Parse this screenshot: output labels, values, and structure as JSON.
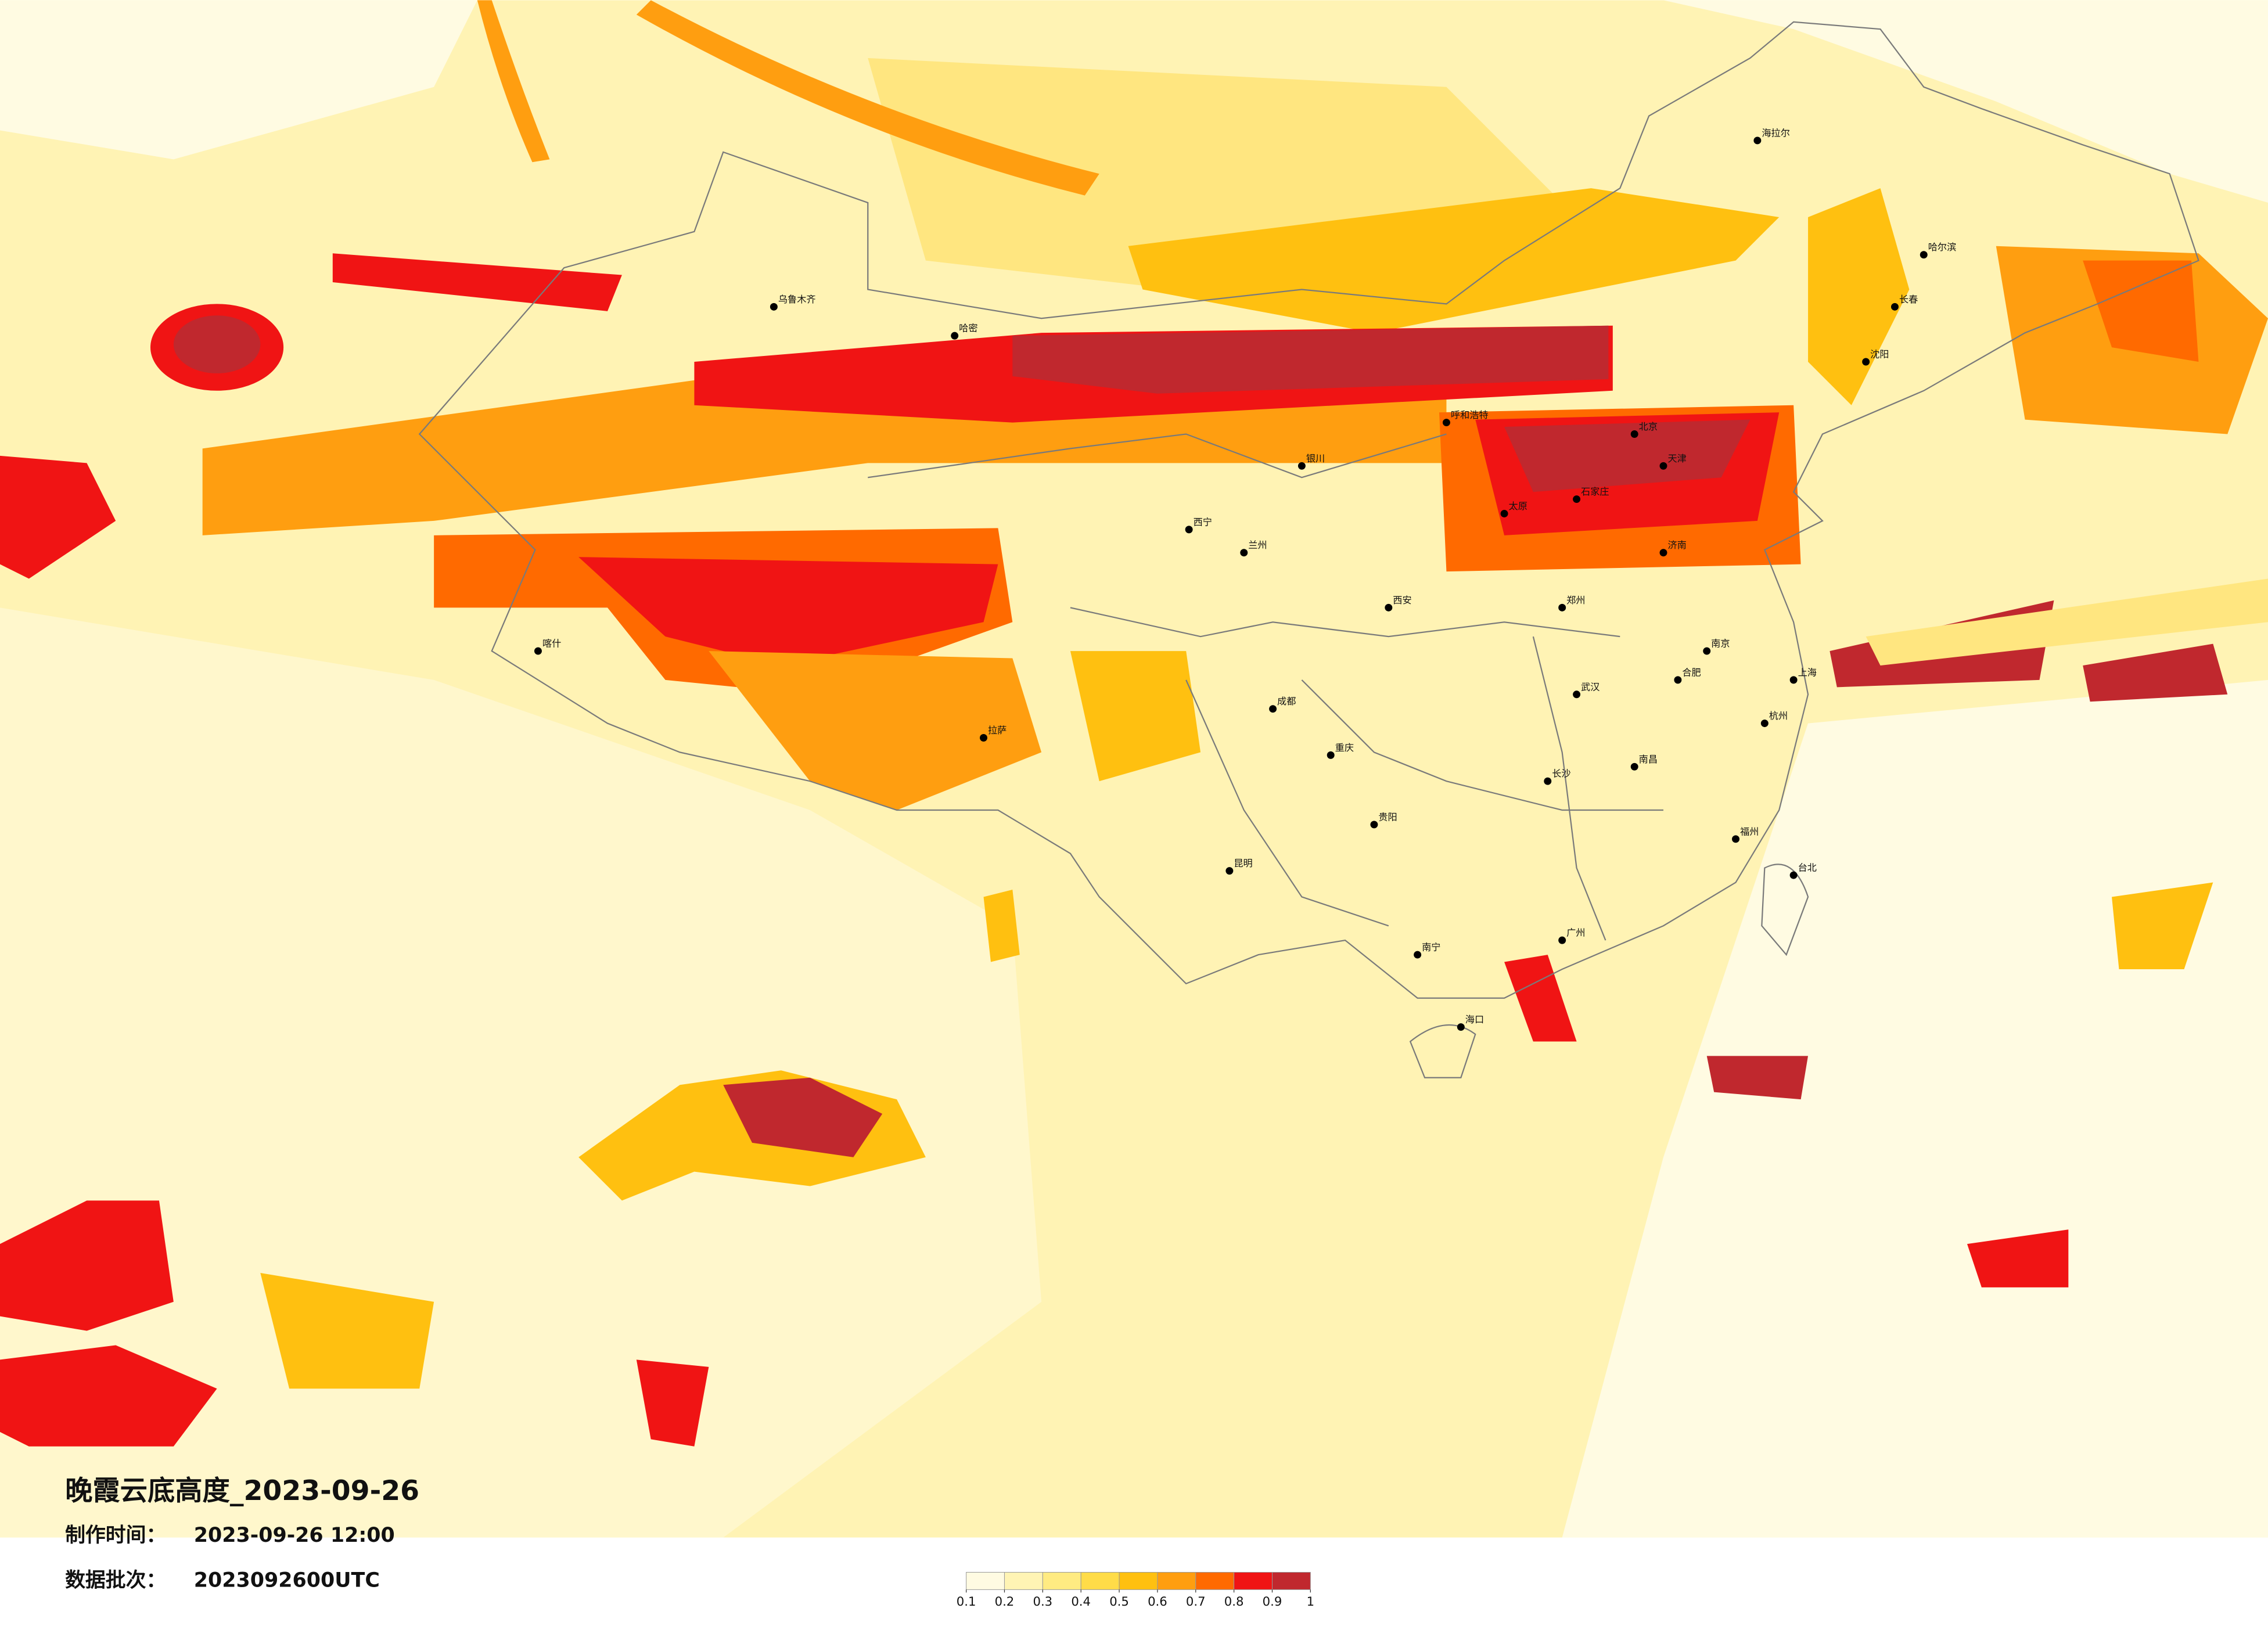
{
  "title": "晚霞云底高度_2023-09-26",
  "production_time": {
    "label": "制作时间：",
    "value": "2023-09-26 12:00"
  },
  "data_batch": {
    "label": "数据批次：",
    "value": "2023092600UTC"
  },
  "legend": {
    "colors": [
      "#fffbe2",
      "#fff4b4",
      "#ffeb82",
      "#ffdc48",
      "#ffc010",
      "#ff9e10",
      "#ff6a00",
      "#f01414",
      "#c0282e"
    ],
    "ticks": [
      0.1,
      0.2,
      0.3,
      0.4,
      0.5,
      0.6,
      0.7,
      0.8,
      0.9,
      1
    ]
  },
  "cities": [
    "北京",
    "天津",
    "石家庄",
    "太原",
    "济南",
    "郑州",
    "西安",
    "成都",
    "重庆",
    "武汉",
    "长沙",
    "南京",
    "上海",
    "杭州",
    "合肥",
    "南昌",
    "福州",
    "广州",
    "南宁",
    "贵阳",
    "昆明",
    "海口",
    "台北",
    "沈阳",
    "长春",
    "哈尔滨",
    "呼和浩特",
    "银川",
    "兰州",
    "西宁",
    "乌鲁木齐",
    "拉萨",
    "喀什",
    "哈密",
    "海拉尔"
  ]
}
